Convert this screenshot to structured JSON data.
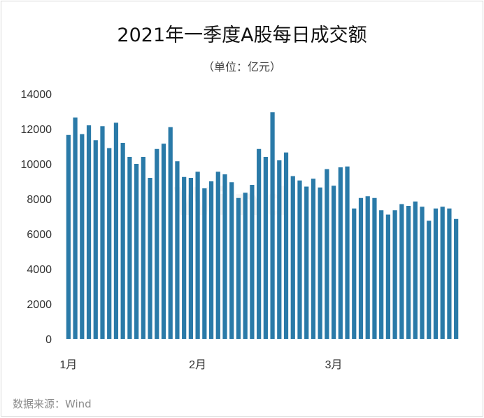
{
  "chart_data": {
    "type": "bar",
    "title": "2021年一季度A股每日成交额",
    "subtitle": "（单位：亿元）",
    "ylim": [
      0,
      14000
    ],
    "yticks": [
      0,
      2000,
      4000,
      6000,
      8000,
      10000,
      12000,
      14000
    ],
    "xticks": [
      {
        "label": "1月",
        "index": 0
      },
      {
        "label": "2月",
        "index": 19
      },
      {
        "label": "3月",
        "index": 39
      }
    ],
    "grid": false,
    "legend": false,
    "values": [
      11650,
      12650,
      11700,
      12200,
      11350,
      12150,
      10900,
      12350,
      11200,
      10400,
      10000,
      10400,
      9200,
      10850,
      11150,
      12100,
      10150,
      9250,
      9200,
      9550,
      8600,
      9000,
      9550,
      9400,
      8950,
      8050,
      8350,
      8800,
      10850,
      10400,
      12950,
      10200,
      10650,
      9300,
      9050,
      8700,
      9150,
      8650,
      9700,
      8750,
      9800,
      9850,
      7450,
      8050,
      8150,
      8050,
      7350,
      7100,
      7350,
      7700,
      7600,
      7850,
      7550,
      6750,
      7450,
      7550,
      7450,
      6850
    ],
    "colors": {
      "bar": "#2a7aa8"
    }
  },
  "source": "数据来源：Wind",
  "watermark": "Wind"
}
